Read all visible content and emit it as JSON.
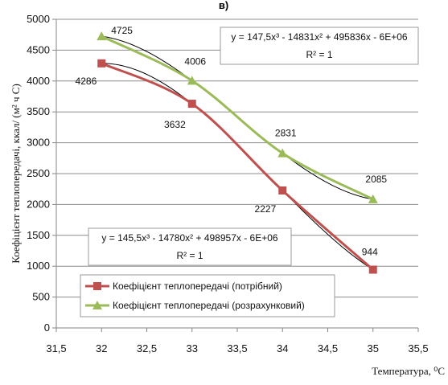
{
  "chart_data": {
    "type": "line",
    "title": "в)",
    "xlabel": "Температура, ⁰С",
    "ylabel": "Коефіцієнт теплопередачі, ккал/ (м² ч С)",
    "xlim": [
      31.5,
      35.5
    ],
    "ylim": [
      0,
      5000
    ],
    "x_ticks": [
      "31,5",
      "32",
      "32,5",
      "33",
      "33,5",
      "34",
      "34,5",
      "35",
      "35,5"
    ],
    "y_ticks": [
      "0",
      "500",
      "1000",
      "1500",
      "2000",
      "2500",
      "3000",
      "3500",
      "4000",
      "4500",
      "5000"
    ],
    "grid": true,
    "legend_position": "bottom-left",
    "series": [
      {
        "name": "Коефіцієнт теплопередачі (потрібний)",
        "color": "#c0504d",
        "marker": "square",
        "x": [
          32,
          33,
          34,
          35
        ],
        "values": [
          4286,
          3632,
          2227,
          944
        ],
        "labels": [
          "4286",
          "3632",
          "2227",
          "944"
        ]
      },
      {
        "name": "Коефіцієнт теплопередачі (розрахунковий)",
        "color": "#9bbb59",
        "marker": "triangle",
        "x": [
          32,
          33,
          34,
          35
        ],
        "values": [
          4725,
          4006,
          2831,
          2085
        ],
        "labels": [
          "4725",
          "4006",
          "2831",
          "2085"
        ]
      }
    ],
    "trendlines": [
      {
        "series": 0,
        "equation": "y = 145,5x³ - 14780x² + 498957x - 6E+06",
        "r2": "R² = 1"
      },
      {
        "series": 1,
        "equation": "y = 147,5x³ - 14831x² + 495836x - 6E+06",
        "r2": "R² = 1"
      }
    ]
  }
}
